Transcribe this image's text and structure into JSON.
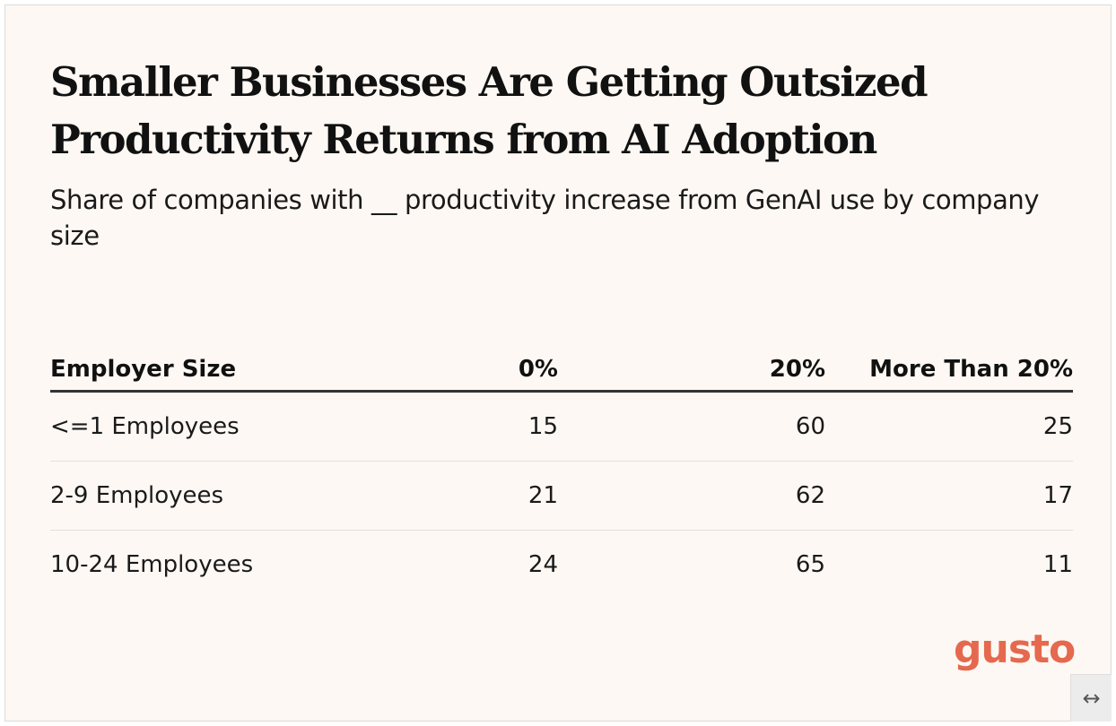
{
  "chart_data": {
    "type": "table",
    "title": "Smaller Businesses Are Getting Outsized Productivity Returns from AI Adoption",
    "subtitle": "Share of companies with __ productivity increase from GenAI use by company size",
    "columns": [
      "Employer Size",
      "0%",
      "20%",
      "More Than 20%"
    ],
    "rows": [
      {
        "label": "<=1 Employees",
        "values": [
          15,
          60,
          25
        ]
      },
      {
        "label": "2-9 Employees",
        "values": [
          21,
          62,
          17
        ]
      },
      {
        "label": "10-24 Employees",
        "values": [
          24,
          65,
          11
        ]
      }
    ]
  },
  "branding": {
    "logo_text": "gusto",
    "logo_color": "#e5694e"
  },
  "controls": {
    "expand_icon": "↔"
  }
}
